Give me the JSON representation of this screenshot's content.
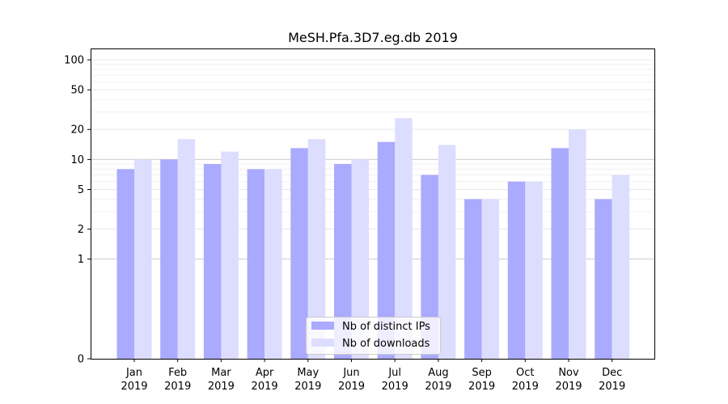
{
  "chart_data": {
    "type": "bar",
    "title": "MeSH.Pfa.3D7.eg.db 2019",
    "xlabel": "",
    "ylabel": "",
    "y_scale": "symlog",
    "ylim": [
      0,
      130
    ],
    "y_ticks": [
      0,
      1,
      2,
      5,
      10,
      20,
      50,
      100
    ],
    "y_tick_labels": [
      "0",
      "1",
      "2",
      "5",
      "10",
      "20",
      "50",
      "100"
    ],
    "categories": [
      [
        "Jan",
        "2019"
      ],
      [
        "Feb",
        "2019"
      ],
      [
        "Mar",
        "2019"
      ],
      [
        "Apr",
        "2019"
      ],
      [
        "May",
        "2019"
      ],
      [
        "Jun",
        "2019"
      ],
      [
        "Jul",
        "2019"
      ],
      [
        "Aug",
        "2019"
      ],
      [
        "Sep",
        "2019"
      ],
      [
        "Oct",
        "2019"
      ],
      [
        "Nov",
        "2019"
      ],
      [
        "Dec",
        "2019"
      ]
    ],
    "series": [
      {
        "name": "Nb of distinct IPs",
        "color": "#aaaaff",
        "values": [
          8,
          10,
          9,
          8,
          13,
          9,
          15,
          7,
          4,
          6,
          13,
          4
        ]
      },
      {
        "name": "Nb of downloads",
        "color": "#ddddff",
        "values": [
          10,
          16,
          12,
          8,
          16,
          10,
          26,
          14,
          4,
          6,
          20,
          7
        ]
      }
    ],
    "grid": true,
    "legend_position": "bottom-center"
  }
}
